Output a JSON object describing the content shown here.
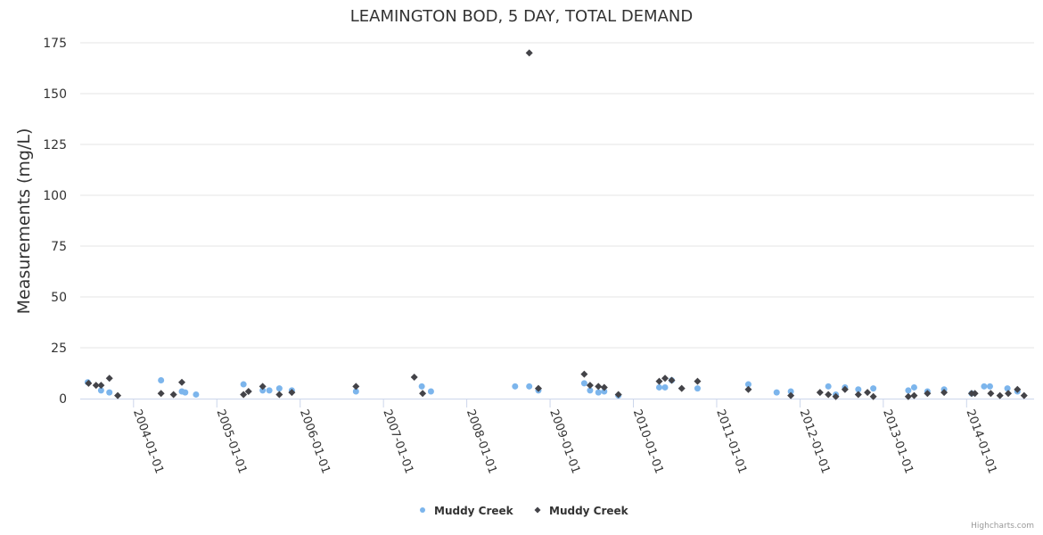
{
  "chart_data": {
    "type": "scatter",
    "title": "LEAMINGTON BOD, 5 DAY, TOTAL DEMAND",
    "xlabel": "",
    "ylabel": "Measurements (mg/L)",
    "ylim": [
      0,
      175
    ],
    "yticks": [
      0,
      25,
      50,
      75,
      100,
      125,
      150,
      175
    ],
    "xlim": [
      2003.36,
      2014.81
    ],
    "xticks": [
      {
        "value": 2004,
        "label": "2004-01-01"
      },
      {
        "value": 2005,
        "label": "2005-01-01"
      },
      {
        "value": 2006,
        "label": "2006-01-01"
      },
      {
        "value": 2007,
        "label": "2007-01-01"
      },
      {
        "value": 2008,
        "label": "2008-01-01"
      },
      {
        "value": 2009,
        "label": "2009-01-01"
      },
      {
        "value": 2010,
        "label": "2010-01-01"
      },
      {
        "value": 2011,
        "label": "2011-01-01"
      },
      {
        "value": 2012,
        "label": "2012-01-01"
      },
      {
        "value": 2013,
        "label": "2013-01-01"
      },
      {
        "value": 2014,
        "label": "2014-01-01"
      }
    ],
    "grid": true,
    "legend": "bottom-center",
    "series": [
      {
        "name": "Muddy Creek",
        "color": "#7cb5ec",
        "marker": "circle",
        "points": [
          [
            2003.45,
            8
          ],
          [
            2003.61,
            4
          ],
          [
            2003.71,
            3
          ],
          [
            2004.33,
            9
          ],
          [
            2004.58,
            3.5
          ],
          [
            2004.62,
            3
          ],
          [
            2004.75,
            2
          ],
          [
            2005.32,
            7
          ],
          [
            2005.55,
            4
          ],
          [
            2005.63,
            4
          ],
          [
            2005.75,
            5
          ],
          [
            2005.9,
            4
          ],
          [
            2006.67,
            3.5
          ],
          [
            2007.46,
            6
          ],
          [
            2007.57,
            3.5
          ],
          [
            2008.58,
            6
          ],
          [
            2008.75,
            6
          ],
          [
            2008.86,
            4
          ],
          [
            2009.41,
            7.5
          ],
          [
            2009.48,
            4
          ],
          [
            2009.58,
            3
          ],
          [
            2009.65,
            3.5
          ],
          [
            2009.82,
            1.5
          ],
          [
            2010.31,
            5.5
          ],
          [
            2010.38,
            5.5
          ],
          [
            2010.46,
            9
          ],
          [
            2010.77,
            5
          ],
          [
            2011.38,
            7
          ],
          [
            2011.72,
            3
          ],
          [
            2011.89,
            3.5
          ],
          [
            2012.34,
            6
          ],
          [
            2012.43,
            2
          ],
          [
            2012.54,
            5.5
          ],
          [
            2012.7,
            4.5
          ],
          [
            2012.88,
            5
          ],
          [
            2013.3,
            4
          ],
          [
            2013.37,
            5.5
          ],
          [
            2013.53,
            3.5
          ],
          [
            2013.73,
            4.5
          ],
          [
            2014.06,
            2.5
          ],
          [
            2014.21,
            6
          ],
          [
            2014.28,
            6
          ],
          [
            2014.49,
            5
          ],
          [
            2014.61,
            3.5
          ]
        ]
      },
      {
        "name": "Muddy Creek",
        "color": "#434348",
        "marker": "diamond",
        "points": [
          [
            2003.46,
            7.5
          ],
          [
            2003.55,
            6.5
          ],
          [
            2003.61,
            6.5
          ],
          [
            2003.71,
            10
          ],
          [
            2003.81,
            1.5
          ],
          [
            2004.33,
            2.5
          ],
          [
            2004.48,
            2
          ],
          [
            2004.58,
            8
          ],
          [
            2005.32,
            2
          ],
          [
            2005.38,
            3.5
          ],
          [
            2005.55,
            6
          ],
          [
            2005.75,
            2
          ],
          [
            2005.9,
            3
          ],
          [
            2006.67,
            6
          ],
          [
            2007.37,
            10.5
          ],
          [
            2007.47,
            2.5
          ],
          [
            2008.75,
            170
          ],
          [
            2008.86,
            5
          ],
          [
            2009.41,
            12
          ],
          [
            2009.48,
            6.5
          ],
          [
            2009.58,
            6
          ],
          [
            2009.65,
            5.5
          ],
          [
            2009.82,
            2
          ],
          [
            2010.31,
            8.5
          ],
          [
            2010.38,
            10
          ],
          [
            2010.46,
            9
          ],
          [
            2010.58,
            5
          ],
          [
            2010.77,
            8.5
          ],
          [
            2011.38,
            4.5
          ],
          [
            2011.89,
            1.5
          ],
          [
            2012.24,
            3
          ],
          [
            2012.34,
            2
          ],
          [
            2012.43,
            1
          ],
          [
            2012.54,
            4.5
          ],
          [
            2012.7,
            2
          ],
          [
            2012.81,
            3
          ],
          [
            2012.88,
            1
          ],
          [
            2013.3,
            1
          ],
          [
            2013.37,
            1.5
          ],
          [
            2013.53,
            2.5
          ],
          [
            2013.73,
            3
          ],
          [
            2014.06,
            2.5
          ],
          [
            2014.1,
            2.5
          ],
          [
            2014.29,
            2.5
          ],
          [
            2014.4,
            1.5
          ],
          [
            2014.5,
            2.5
          ],
          [
            2014.61,
            4.5
          ],
          [
            2014.69,
            1.5
          ]
        ]
      }
    ]
  },
  "credit": "Highcharts.com"
}
